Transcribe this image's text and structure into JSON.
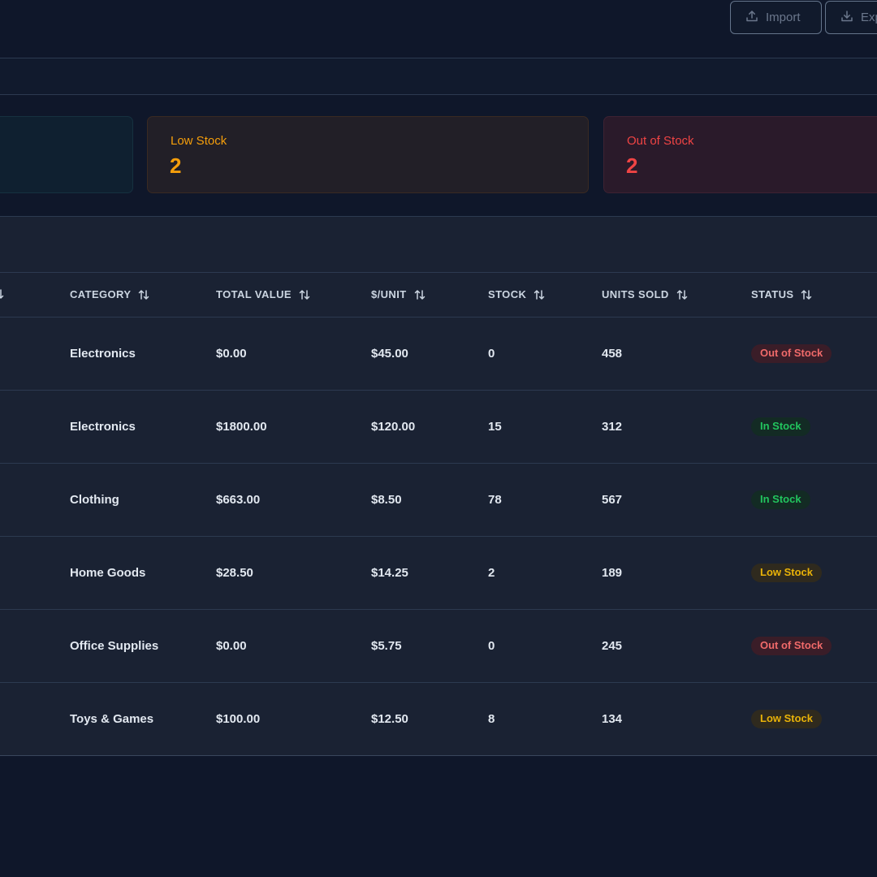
{
  "toolbar": {
    "import_label": "Import",
    "export_label": "Export",
    "import_icon": "upload-icon",
    "export_icon": "download-icon"
  },
  "stats": {
    "low_stock": {
      "label": "Low Stock",
      "value": "2"
    },
    "out_of_stock": {
      "label": "Out of Stock",
      "value": "2"
    }
  },
  "table": {
    "columns": [
      "CATEGORY",
      "TOTAL VALUE",
      "$/UNIT",
      "STOCK",
      "UNITS SOLD",
      "STATUS"
    ],
    "rows": [
      {
        "category": "Electronics",
        "total_value": "$0.00",
        "per_unit": "$45.00",
        "stock": "0",
        "units_sold": "458",
        "status": "Out of Stock",
        "status_kind": "out"
      },
      {
        "category": "Electronics",
        "total_value": "$1800.00",
        "per_unit": "$120.00",
        "stock": "15",
        "units_sold": "312",
        "status": "In Stock",
        "status_kind": "in"
      },
      {
        "category": "Clothing",
        "total_value": "$663.00",
        "per_unit": "$8.50",
        "stock": "78",
        "units_sold": "567",
        "status": "In Stock",
        "status_kind": "in"
      },
      {
        "category": "Home Goods",
        "total_value": "$28.50",
        "per_unit": "$14.25",
        "stock": "2",
        "units_sold": "189",
        "status": "Low Stock",
        "status_kind": "low"
      },
      {
        "category": "Office Supplies",
        "total_value": "$0.00",
        "per_unit": "$5.75",
        "stock": "0",
        "units_sold": "245",
        "status": "Out of Stock",
        "status_kind": "out"
      },
      {
        "category": "Toys & Games",
        "total_value": "$100.00",
        "per_unit": "$12.50",
        "stock": "8",
        "units_sold": "134",
        "status": "Low Stock",
        "status_kind": "low"
      }
    ]
  },
  "colors": {
    "background": "#0f172a",
    "low_stock": "#f59e0b",
    "out_of_stock": "#ef4444",
    "in_stock": "#22c55e"
  }
}
